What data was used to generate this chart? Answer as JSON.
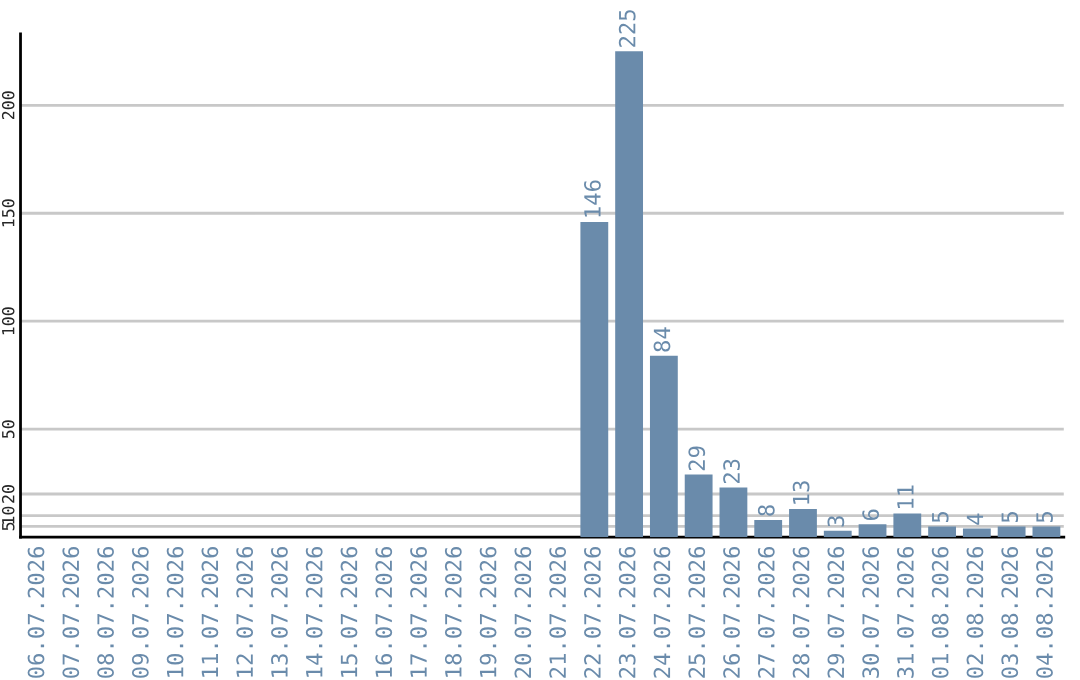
{
  "chart_data": {
    "type": "bar",
    "categories": [
      "06.07.2026",
      "07.07.2026",
      "08.07.2026",
      "09.07.2026",
      "10.07.2026",
      "11.07.2026",
      "12.07.2026",
      "13.07.2026",
      "14.07.2026",
      "15.07.2026",
      "16.07.2026",
      "17.07.2026",
      "18.07.2026",
      "19.07.2026",
      "20.07.2026",
      "21.07.2026",
      "22.07.2026",
      "23.07.2026",
      "24.07.2026",
      "25.07.2026",
      "26.07.2026",
      "27.07.2026",
      "28.07.2026",
      "29.07.2026",
      "30.07.2026",
      "31.07.2026",
      "01.08.2026",
      "02.08.2026",
      "03.08.2026",
      "04.08.2026"
    ],
    "values": [
      0,
      0,
      0,
      0,
      0,
      0,
      0,
      0,
      0,
      0,
      0,
      0,
      0,
      0,
      0,
      0,
      146,
      225,
      84,
      29,
      23,
      8,
      13,
      3,
      6,
      11,
      5,
      4,
      5,
      5
    ],
    "value_labels": [
      null,
      null,
      null,
      null,
      null,
      null,
      null,
      null,
      null,
      null,
      null,
      null,
      null,
      null,
      null,
      null,
      "146",
      "225",
      "84",
      "29",
      "23",
      "8",
      "13",
      "3",
      "6",
      "11",
      "5",
      "4",
      "5",
      "5"
    ],
    "color": "#6a8bab",
    "ylim": [
      0,
      233
    ],
    "yticks": [
      5,
      10,
      20,
      50,
      100,
      150,
      200
    ],
    "grid": "y",
    "legend": false
  }
}
